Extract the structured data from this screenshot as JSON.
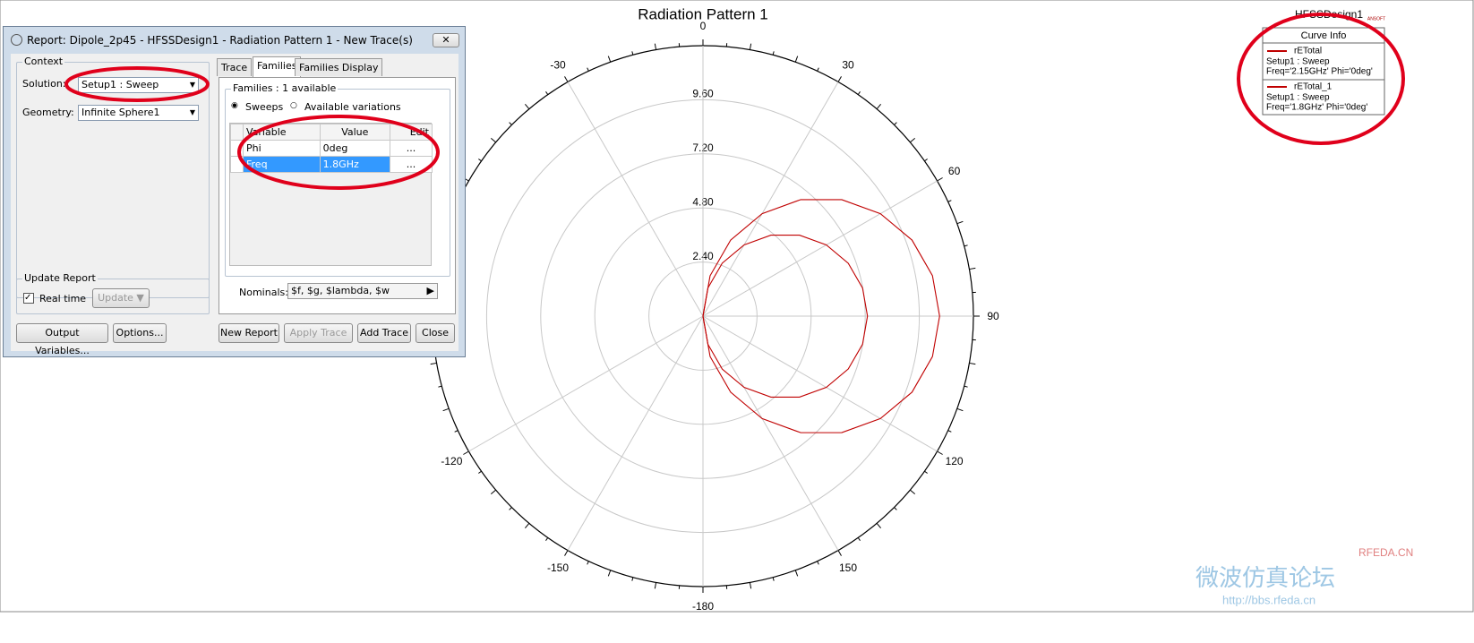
{
  "window": {
    "design": "HFSSDesign1",
    "logo": "ANSOFT"
  },
  "chart_data": {
    "type": "polar",
    "title": "Radiation Pattern 1",
    "rlim": [
      0,
      12
    ],
    "rticks": [
      {
        "value": 2.4,
        "label": "2.40"
      },
      {
        "value": 4.8,
        "label": "4.80"
      },
      {
        "value": 7.2,
        "label": "7.20"
      },
      {
        "value": 9.6,
        "label": "9.60"
      }
    ],
    "angle_ticks": [
      0,
      30,
      60,
      90,
      120,
      150,
      -180,
      -150,
      -120,
      -30
    ],
    "theta": [
      0,
      10,
      20,
      30,
      40,
      50,
      60,
      70,
      80,
      90,
      100,
      110,
      120,
      130,
      140,
      150,
      160,
      170,
      180
    ],
    "legend_title": "Curve Info",
    "series": [
      {
        "name": "rETotal",
        "color": "#c00000",
        "info": [
          "Setup1 : Sweep",
          "Freq='2.15GHz' Phi='0deg'"
        ],
        "values": [
          0,
          1.82,
          3.59,
          5.25,
          6.75,
          8.04,
          9.09,
          9.87,
          10.34,
          10.5,
          10.34,
          9.87,
          9.09,
          8.04,
          6.75,
          5.25,
          3.59,
          1.82,
          0
        ]
      },
      {
        "name": "rETotal_1",
        "color": "#c00000",
        "info": [
          "Setup1 : Sweep",
          "Freq='1.8GHz' Phi='0deg'"
        ],
        "values": [
          0,
          1.27,
          2.5,
          3.65,
          4.69,
          5.59,
          6.32,
          6.86,
          7.19,
          7.3,
          7.19,
          6.86,
          6.32,
          5.59,
          4.69,
          3.65,
          2.5,
          1.27,
          0
        ]
      }
    ]
  },
  "dialog": {
    "title": "Report: Dipole_2p45 - HFSSDesign1 - Radiation Pattern 1 - New Trace(s)",
    "context": "Context",
    "solution_label": "Solution:",
    "solution": "Setup1 : Sweep",
    "geometry_label": "Geometry:",
    "geometry": "Infinite Sphere1",
    "tabs": [
      "Trace",
      "Families",
      "Families Display"
    ],
    "families": "Families : 1 available",
    "radios": [
      "Sweeps",
      "Available variations"
    ],
    "table": {
      "header": [
        "Variable",
        "Value",
        "Edit"
      ],
      "rows": [
        [
          "Phi",
          "0deg",
          "..."
        ],
        [
          "Freq",
          "1.8GHz",
          "..."
        ]
      ]
    },
    "nominals_label": "Nominals:",
    "nominals": "$f, $g, $lambda, $w",
    "update_report": "Update Report",
    "real_time": "Real time",
    "update": "Update",
    "buttons": [
      "Output Variables...",
      "Options...",
      "New Report",
      "Apply Trace",
      "Add Trace",
      "Close"
    ]
  },
  "watermark": [
    "RFEDA.CN",
    "微波仿真论坛",
    "http://bbs.rfeda.cn"
  ]
}
